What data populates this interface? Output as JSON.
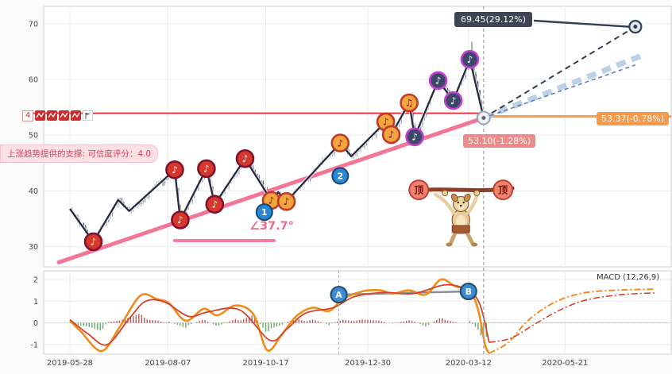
{
  "page": {
    "background": "#fbfbfb",
    "panel_border": "#cfcfcf"
  },
  "axes": {
    "x_tick_labels": [
      "2019-05-28",
      "2019-08-07",
      "2019-10-17",
      "2019-12-30",
      "2020-03-12",
      "2020-05-21"
    ],
    "price_tick_labels": [
      "30",
      "40",
      "50",
      "60",
      "70"
    ],
    "macd_tick_labels": [
      "-1",
      "0",
      "1",
      "2"
    ],
    "price_axis_badge": "4"
  },
  "pattern_icons": [
    "zigzag",
    "zigzag",
    "zigzag",
    "zigzag",
    "flag"
  ],
  "vertical_marker_date": "2020-03-23",
  "chart_data": [
    {
      "type": "candlestick",
      "panel": "price",
      "xlim": [
        "2019-05-09",
        "2020-08-06"
      ],
      "ylim": [
        26.4,
        73.1
      ],
      "x_ticks": [
        "2019-05-28",
        "2019-08-07",
        "2019-10-17",
        "2019-12-30",
        "2020-03-12",
        "2020-05-21"
      ],
      "y_ticks": [
        30,
        40,
        50,
        60,
        70
      ],
      "pivots": [
        [
          "2019-05-28",
          36.8,
          null
        ],
        [
          "2019-06-14",
          30.9,
          "red"
        ],
        [
          "2019-07-02",
          38.4,
          null
        ],
        [
          "2019-07-10",
          36.4,
          null
        ],
        [
          "2019-08-12",
          43.8,
          "red"
        ],
        [
          "2019-08-16",
          34.8,
          "red"
        ],
        [
          "2019-09-04",
          44.0,
          "red"
        ],
        [
          "2019-09-10",
          37.6,
          "red"
        ],
        [
          "2019-10-02",
          45.8,
          "red"
        ],
        [
          "2019-10-21",
          38.3,
          "orange"
        ],
        [
          "2019-10-26",
          39.8,
          null
        ],
        [
          "2019-11-01",
          38.1,
          "orange"
        ],
        [
          "2019-12-10",
          48.6,
          "orange"
        ],
        [
          "2019-12-18",
          46.2,
          null
        ],
        [
          "2020-01-12",
          52.4,
          "orange"
        ],
        [
          "2020-01-16",
          50.1,
          "orange"
        ],
        [
          "2020-01-29",
          55.8,
          "orange2"
        ],
        [
          "2020-02-02",
          49.7,
          "purple"
        ],
        [
          "2020-02-19",
          59.8,
          "purple"
        ],
        [
          "2020-03-01",
          56.2,
          "purple"
        ],
        [
          "2020-03-13",
          63.6,
          "purple"
        ]
      ],
      "current_point": {
        "date": "2020-03-23",
        "price": 53.1
      },
      "peak_wick_extra": 2.8,
      "wave_labels": [
        {
          "text": "1",
          "date": "2019-10-16",
          "price": 36.2
        },
        {
          "text": "2",
          "date": "2019-12-10",
          "price": 42.7
        }
      ],
      "trend_line": {
        "from": [
          "2019-05-20",
          27.2
        ],
        "to": [
          "2020-03-23",
          53.1
        ],
        "color": "#f2688c"
      },
      "angle_annotation": {
        "label": "∠37.7°",
        "base_price": 31.1,
        "base_from": "2019-08-12",
        "base_to": "2019-10-23"
      },
      "horizontal_lines": [
        {
          "price": 53.94,
          "color": "#e8374a",
          "width": 2,
          "span": "left-to-current"
        },
        {
          "price": 53.37,
          "color": "#f59b4c",
          "width": 3,
          "span": "current-to-right"
        }
      ],
      "projections": [
        {
          "style": "fat-lightblue-dashed",
          "to": [
            "2020-07-16",
            64.3
          ]
        },
        {
          "style": "thin-navy-dashed",
          "to": [
            "2020-07-11",
            62.6
          ]
        },
        {
          "style": "dark-dashed",
          "to": [
            "2020-07-11",
            69.45
          ],
          "endpoint": "bullseye"
        }
      ],
      "labels": {
        "target_price": "69.45(29.12%)",
        "right_price": "53.37(-0.78%)",
        "current_price": "53.10(-1.28%)",
        "support_note": "上涨趋势提供的支撑: 可信度评分：4.0"
      },
      "mascot": {
        "badge_text": "顶",
        "left_badge": [
          "2020-02-05",
          40.2
        ],
        "right_badge": [
          "2020-04-06",
          40.2
        ]
      }
    },
    {
      "type": "line",
      "panel": "macd",
      "label": "MACD (12,26,9)",
      "ylim": [
        -1.44,
        2.4
      ],
      "y_ticks": [
        -1,
        0,
        1,
        2
      ],
      "series": [
        {
          "name": "macd",
          "color": "#f08c1e",
          "width": 2.6,
          "points": [
            [
              "2019-05-28",
              0.1
            ],
            [
              "2019-06-05",
              -0.4
            ],
            [
              "2019-06-20",
              -1.3
            ],
            [
              "2019-07-03",
              -0.2
            ],
            [
              "2019-07-18",
              1.25
            ],
            [
              "2019-07-30",
              1.1
            ],
            [
              "2019-08-08",
              0.9
            ],
            [
              "2019-08-20",
              0.1
            ],
            [
              "2019-09-02",
              0.65
            ],
            [
              "2019-09-12",
              0.35
            ],
            [
              "2019-09-25",
              0.8
            ],
            [
              "2019-10-08",
              0.4
            ],
            [
              "2019-10-18",
              -1.25
            ],
            [
              "2019-10-28",
              -0.6
            ],
            [
              "2019-11-08",
              0.3
            ],
            [
              "2019-11-20",
              0.7
            ],
            [
              "2019-12-02",
              0.55
            ],
            [
              "2019-12-12",
              1.1
            ],
            [
              "2019-12-26",
              1.45
            ],
            [
              "2020-01-08",
              1.5
            ],
            [
              "2020-01-17",
              1.35
            ],
            [
              "2020-01-29",
              1.5
            ],
            [
              "2020-02-10",
              1.3
            ],
            [
              "2020-02-21",
              2.0
            ],
            [
              "2020-03-02",
              1.7
            ],
            [
              "2020-03-13",
              1.45
            ],
            [
              "2020-03-19",
              0.6
            ],
            [
              "2020-03-24",
              -1.0
            ],
            [
              "2020-03-27",
              -1.4
            ]
          ]
        },
        {
          "name": "signal",
          "color": "#d2452a",
          "width": 1.8,
          "points": [
            [
              "2019-05-28",
              0.15
            ],
            [
              "2019-06-10",
              -0.5
            ],
            [
              "2019-06-24",
              -1.0
            ],
            [
              "2019-07-10",
              0.2
            ],
            [
              "2019-07-22",
              1.0
            ],
            [
              "2019-08-05",
              0.95
            ],
            [
              "2019-08-22",
              0.3
            ],
            [
              "2019-09-05",
              0.5
            ],
            [
              "2019-09-28",
              0.6
            ],
            [
              "2019-10-20",
              -0.8
            ],
            [
              "2019-11-01",
              -0.3
            ],
            [
              "2019-11-15",
              0.45
            ],
            [
              "2019-12-05",
              0.7
            ],
            [
              "2019-12-20",
              1.2
            ],
            [
              "2020-01-10",
              1.4
            ],
            [
              "2020-02-01",
              1.35
            ],
            [
              "2020-02-24",
              1.75
            ],
            [
              "2020-03-10",
              1.55
            ],
            [
              "2020-03-20",
              0.9
            ],
            [
              "2020-03-27",
              -0.9
            ]
          ]
        }
      ],
      "forecast": [
        {
          "name": "macd-forecast",
          "color": "#f08c1e",
          "width": 2,
          "dash": "8,3,2,3",
          "points": [
            [
              "2020-03-27",
              -1.4
            ],
            [
              "2020-04-10",
              -0.9
            ],
            [
              "2020-04-24",
              0.1
            ],
            [
              "2020-05-12",
              0.9
            ],
            [
              "2020-06-01",
              1.35
            ],
            [
              "2020-06-25",
              1.5
            ],
            [
              "2020-07-25",
              1.55
            ]
          ]
        },
        {
          "name": "signal-forecast",
          "color": "#d2452a",
          "width": 1.6,
          "dash": "8,3,2,3",
          "points": [
            [
              "2020-03-27",
              -0.9
            ],
            [
              "2020-04-12",
              -0.7
            ],
            [
              "2020-04-28",
              -0.1
            ],
            [
              "2020-05-16",
              0.55
            ],
            [
              "2020-06-05",
              1.05
            ],
            [
              "2020-07-01",
              1.3
            ],
            [
              "2020-07-25",
              1.38
            ]
          ]
        }
      ],
      "histogram": {
        "pos_color": "#b23b3b",
        "neg_color": "#4e9a4e",
        "derive": "macd-signal",
        "step_days": 2
      },
      "ab_connector": {
        "from": [
          "2019-12-09",
          1.3
        ],
        "to": [
          "2020-03-12",
          1.45
        ],
        "color": "#8a8f98"
      },
      "letters": [
        {
          "text": "A",
          "date": "2019-12-09",
          "value": 1.3
        },
        {
          "text": "B",
          "date": "2020-03-12",
          "value": 1.45
        }
      ],
      "dashed_verticals": [
        "2019-12-09"
      ]
    }
  ]
}
